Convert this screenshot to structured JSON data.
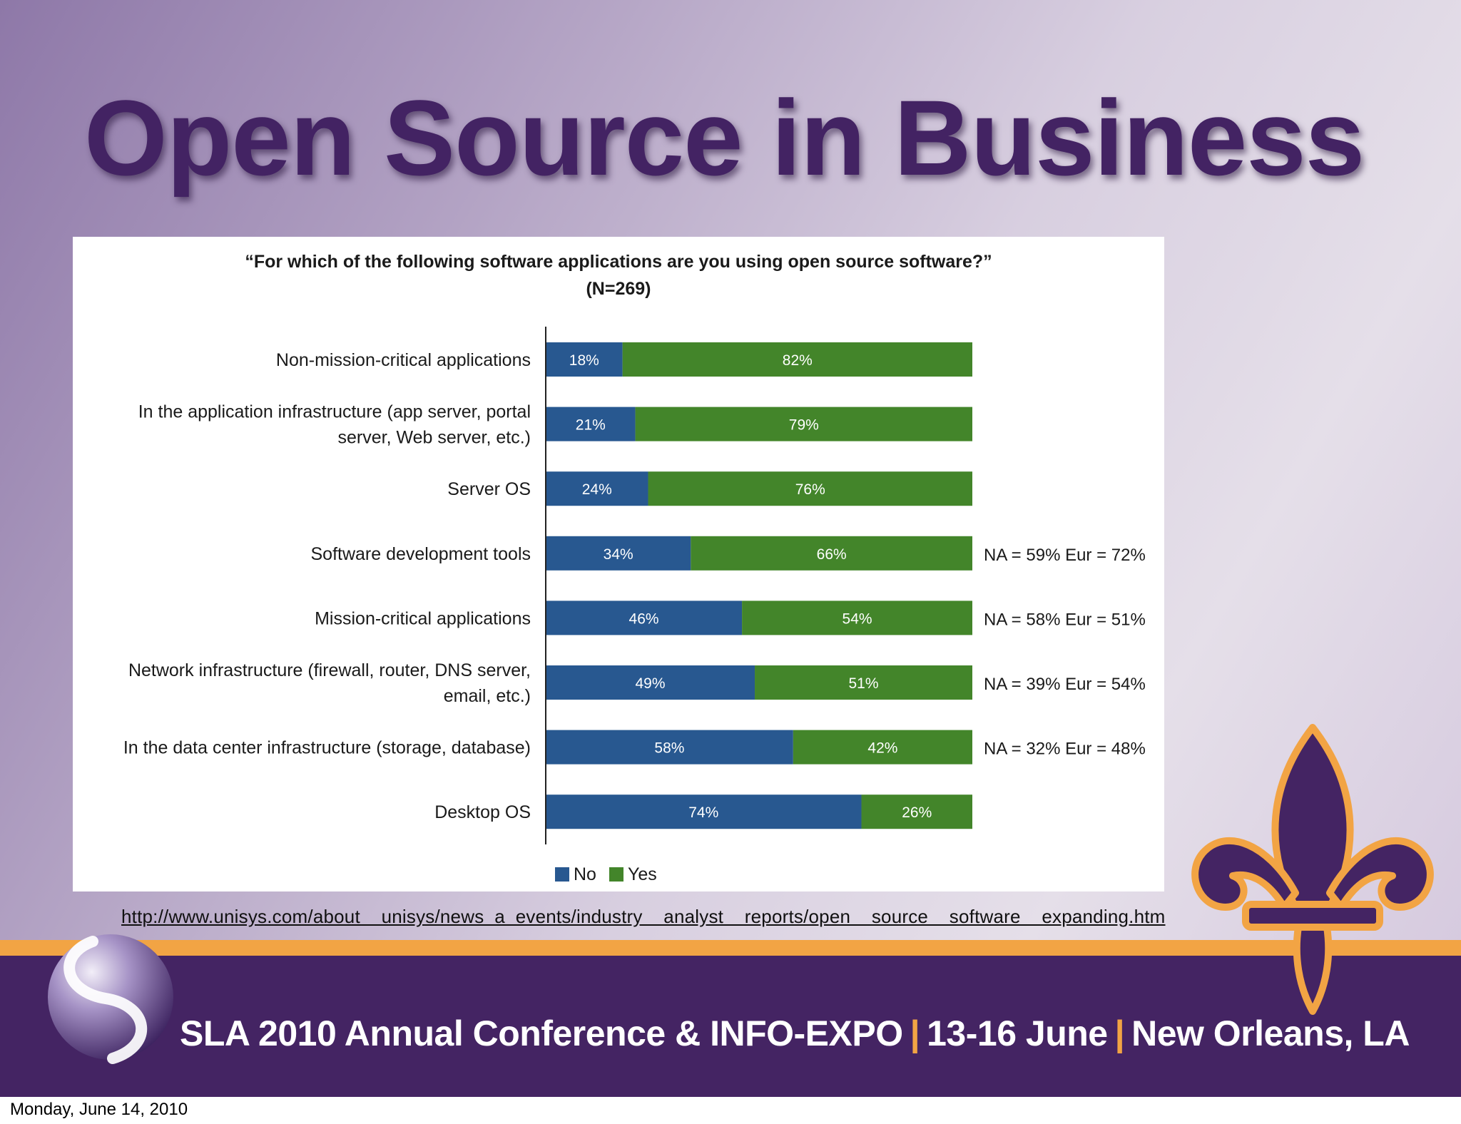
{
  "slide": {
    "title": "Open Source in Business",
    "source_url": "http://www.unisys.com/about    unisys/news  a  events/industry    analyst    reports/open    source    software    expanding.htm",
    "footer": {
      "part1": "SLA 2010 Annual Conference & INFO-EXPO",
      "separator": "|",
      "part2": "13-16 June",
      "part3": "New Orleans, LA"
    },
    "date_stamp": "Monday, June 14, 2010"
  },
  "colors": {
    "title": "#432363",
    "no": "#285890",
    "yes": "#43852a",
    "footer_band": "#442463",
    "accent_orange": "#f2a444"
  },
  "chart_data": {
    "type": "bar",
    "orientation": "horizontal",
    "stacked": true,
    "title": "“For which of the following software applications are you using open source software?”",
    "subtitle": "(N=269)",
    "categories": [
      [
        "Non-mission-critical applications"
      ],
      [
        "In the application infrastructure (app server, portal",
        "server, Web server, etc.)"
      ],
      [
        "Server OS"
      ],
      [
        "Software development tools"
      ],
      [
        "Mission-critical applications"
      ],
      [
        "Network infrastructure (firewall, router, DNS server,",
        "email, etc.)"
      ],
      [
        "In the data center infrastructure (storage, database)"
      ],
      [
        "Desktop OS"
      ]
    ],
    "series": [
      {
        "name": "No",
        "values": [
          18,
          21,
          24,
          34,
          46,
          49,
          58,
          74
        ]
      },
      {
        "name": "Yes",
        "values": [
          82,
          79,
          76,
          66,
          54,
          51,
          42,
          26
        ]
      }
    ],
    "annotations": [
      "",
      "",
      "",
      "NA = 59% Eur = 72%",
      "NA = 58% Eur = 51%",
      "NA = 39% Eur = 54%",
      "NA = 32% Eur = 48%",
      ""
    ],
    "xlim": [
      0,
      100
    ],
    "grid": false,
    "legend": "bottom-center"
  }
}
